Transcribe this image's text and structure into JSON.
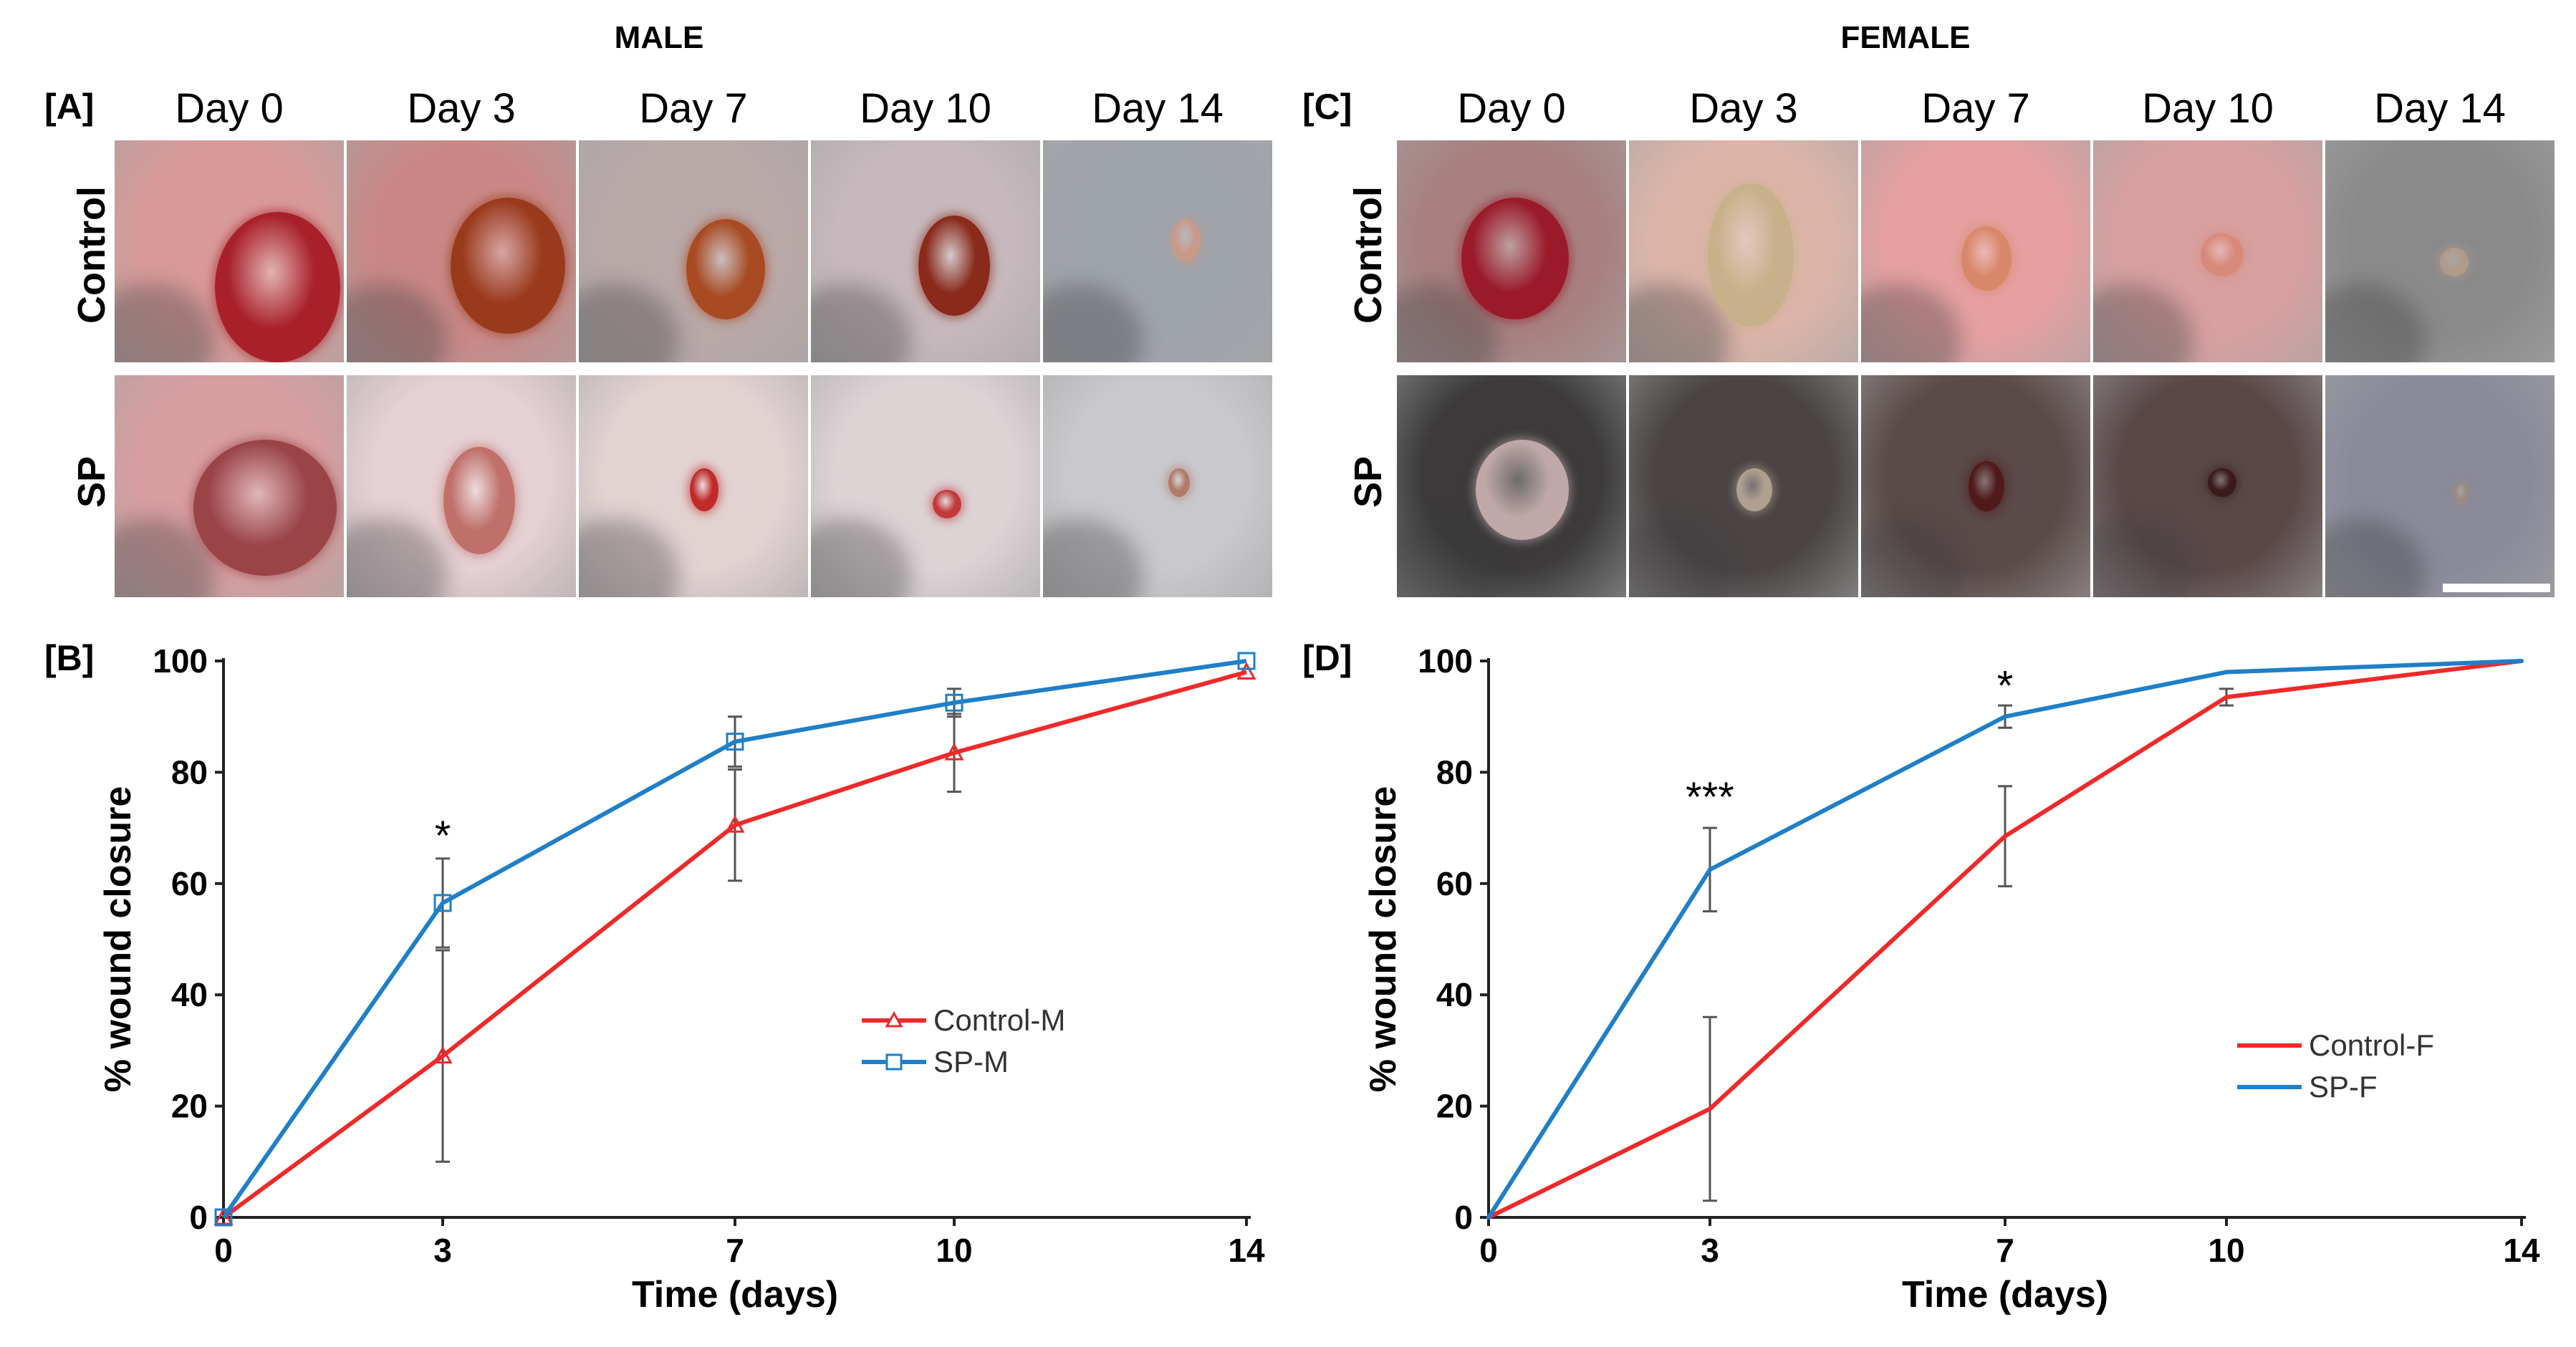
{
  "male": {
    "title": "MALE",
    "photo_label": "[A]",
    "chart_label": "[B]",
    "days": [
      "Day 0",
      "Day 3",
      "Day 7",
      "Day 10",
      "Day 14"
    ],
    "rows": [
      "Control",
      "SP"
    ]
  },
  "female": {
    "title": "FEMALE",
    "photo_label": "[C]",
    "chart_label": "[D]",
    "days": [
      "Day 0",
      "Day 3",
      "Day 7",
      "Day 10",
      "Day 14"
    ],
    "rows": [
      "Control",
      "SP"
    ]
  },
  "chart_data": [
    {
      "type": "line",
      "xlabel": "Time (days)",
      "ylabel": "% wound closure",
      "x": [
        0,
        3,
        7,
        10,
        14
      ],
      "xticks": [
        "0",
        "3",
        "7",
        "10",
        "14"
      ],
      "yticks": [
        "0",
        "20",
        "40",
        "60",
        "80",
        "100"
      ],
      "xlim": [
        0,
        14
      ],
      "ylim": [
        0,
        100
      ],
      "legend_position": "center-right",
      "series": [
        {
          "name": "Control-M",
          "values": [
            0,
            29,
            70.5,
            83.5,
            98
          ],
          "errors": [
            0,
            19,
            10,
            7,
            0
          ],
          "color": "#ee2a2a",
          "marker": "triangle"
        },
        {
          "name": "SP-M",
          "values": [
            0,
            56.5,
            85.5,
            92.5,
            100
          ],
          "errors": [
            0,
            8,
            4.5,
            2.5,
            0
          ],
          "color": "#1f7fc8",
          "marker": "square"
        }
      ],
      "annotations": [
        {
          "text": "*",
          "x": 3,
          "y": 66
        }
      ]
    },
    {
      "type": "line",
      "xlabel": "Time (days)",
      "ylabel": "% wound closure",
      "x": [
        0,
        3,
        7,
        10,
        14
      ],
      "xticks": [
        "0",
        "3",
        "7",
        "10",
        "14"
      ],
      "yticks": [
        "0",
        "20",
        "40",
        "60",
        "80",
        "100"
      ],
      "xlim": [
        0,
        14
      ],
      "ylim": [
        0,
        100
      ],
      "legend_position": "lower-right",
      "series": [
        {
          "name": "Control-F",
          "values": [
            0,
            19.5,
            68.5,
            93.5,
            100
          ],
          "errors": [
            0,
            16.5,
            9,
            1.5,
            0
          ],
          "color": "#ee2a2a",
          "marker": "none"
        },
        {
          "name": "SP-F",
          "values": [
            0,
            62.5,
            90,
            98,
            100
          ],
          "errors": [
            0,
            7.5,
            2,
            0,
            0
          ],
          "color": "#1f7fc8",
          "marker": "none"
        }
      ],
      "annotations": [
        {
          "text": "***",
          "x": 3,
          "y": 73
        },
        {
          "text": "*",
          "x": 7,
          "y": 93
        }
      ]
    }
  ]
}
